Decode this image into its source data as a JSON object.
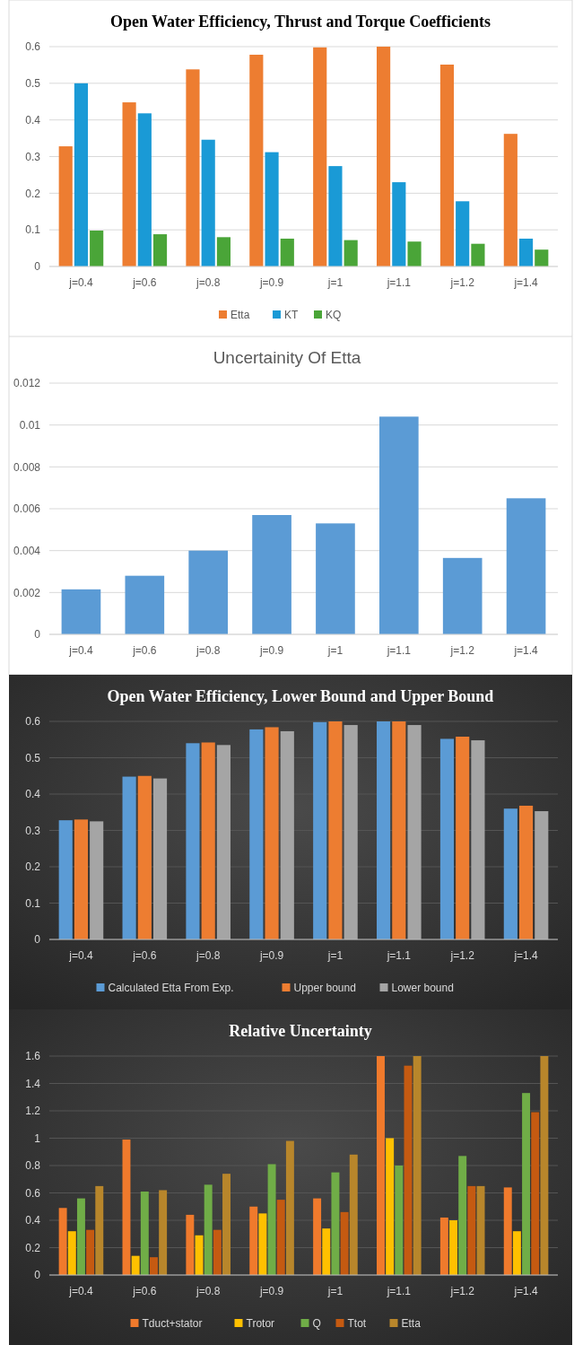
{
  "chart_data": [
    {
      "type": "bar",
      "title": "Open Water Efficiency, Thrust and Torque Coefficients",
      "categories": [
        "j=0.4",
        "j=0.6",
        "j=0.8",
        "j=0.9",
        "j=1",
        "j=1.1",
        "j=1.2",
        "j=1.4"
      ],
      "series": [
        {
          "name": "Etta",
          "color": "#ed7d31",
          "values": [
            0.328,
            0.448,
            0.538,
            0.578,
            0.598,
            0.6,
            0.551,
            0.362
          ]
        },
        {
          "name": "KT",
          "color": "#1a9ad6",
          "values": [
            0.5,
            0.418,
            0.346,
            0.312,
            0.274,
            0.23,
            0.178,
            0.076
          ]
        },
        {
          "name": "KQ",
          "color": "#4aa538",
          "values": [
            0.098,
            0.088,
            0.08,
            0.076,
            0.072,
            0.068,
            0.062,
            0.046
          ]
        }
      ],
      "ylim": [
        0,
        0.6
      ],
      "yticks": [
        0,
        0.1,
        0.2,
        0.3,
        0.4,
        0.5,
        0.6
      ],
      "grid": "y",
      "legend": "bottom"
    },
    {
      "type": "bar",
      "title": "Uncertainity Of Etta",
      "categories": [
        "j=0.4",
        "j=0.6",
        "j=0.8",
        "j=0.9",
        "j=1",
        "j=1.1",
        "j=1.2",
        "j=1.4"
      ],
      "series": [
        {
          "color": "#5b9bd5",
          "values": [
            0.00215,
            0.0028,
            0.004,
            0.0057,
            0.0053,
            0.0104,
            0.00365,
            0.0065
          ]
        }
      ],
      "ylim": [
        0,
        0.012
      ],
      "yticks": [
        0,
        0.002,
        0.004,
        0.006,
        0.008,
        0.01,
        0.012
      ],
      "grid": "y"
    },
    {
      "type": "bar",
      "title": "Open Water Efficiency, Lower Bound and Upper Bound",
      "categories": [
        "j=0.4",
        "j=0.6",
        "j=0.8",
        "j=0.9",
        "j=1",
        "j=1.1",
        "j=1.2",
        "j=1.4"
      ],
      "series": [
        {
          "name": "Calculated Etta From Exp.",
          "color": "#5b9bd5",
          "values": [
            0.328,
            0.448,
            0.54,
            0.578,
            0.598,
            0.6,
            0.552,
            0.36
          ]
        },
        {
          "name": "Upper bound",
          "color": "#ed7d31",
          "values": [
            0.33,
            0.45,
            0.542,
            0.584,
            0.6,
            0.6,
            0.558,
            0.368
          ]
        },
        {
          "name": "Lower bound",
          "color": "#a5a5a5",
          "values": [
            0.325,
            0.443,
            0.535,
            0.573,
            0.59,
            0.59,
            0.548,
            0.353
          ]
        }
      ],
      "ylim": [
        0,
        0.6
      ],
      "yticks": [
        0,
        0.1,
        0.2,
        0.3,
        0.4,
        0.5,
        0.6
      ],
      "grid": "y",
      "legend": "bottom"
    },
    {
      "type": "bar",
      "title": "Relative Uncertainty",
      "categories": [
        "j=0.4",
        "j=0.6",
        "j=0.8",
        "j=0.9",
        "j=1",
        "j=1.1",
        "j=1.2",
        "j=1.4"
      ],
      "series": [
        {
          "name": "Tduct+stator",
          "color": "#f07a2c",
          "values": [
            0.49,
            0.99,
            0.44,
            0.5,
            0.56,
            1.6,
            0.42,
            0.64
          ]
        },
        {
          "name": "Trotor",
          "color": "#ffc000",
          "values": [
            0.32,
            0.14,
            0.29,
            0.45,
            0.34,
            1.0,
            0.4,
            0.32
          ]
        },
        {
          "name": "Q",
          "color": "#70ad47",
          "values": [
            0.56,
            0.61,
            0.66,
            0.81,
            0.75,
            0.8,
            0.87,
            1.33
          ]
        },
        {
          "name": "Ttot",
          "color": "#c55a11",
          "values": [
            0.33,
            0.13,
            0.33,
            0.55,
            0.46,
            1.53,
            0.65,
            1.19
          ]
        },
        {
          "name": "Etta",
          "color": "#b8862b",
          "values": [
            0.65,
            0.62,
            0.74,
            0.98,
            0.88,
            1.6,
            0.65,
            1.6
          ]
        }
      ],
      "ylim": [
        0,
        1.6
      ],
      "yticks": [
        0,
        0.2,
        0.4,
        0.6,
        0.8,
        1,
        1.2,
        1.4,
        1.6
      ],
      "grid": "y",
      "legend": "bottom"
    }
  ]
}
